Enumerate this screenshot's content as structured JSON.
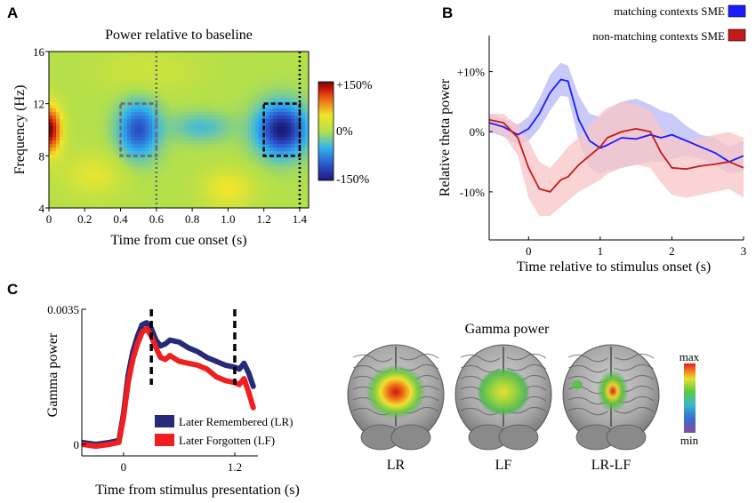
{
  "panel_letters": {
    "a": "A",
    "b": "B",
    "c": "C"
  },
  "colors": {
    "matching": "#1a1aff",
    "matching_band": "#b8b8f5",
    "nonmatching": "#c41a1a",
    "nonmatching_band": "#f8c6c6",
    "lr": "#262a78",
    "lf": "#f01e1e"
  },
  "chart_data": [
    {
      "panel": "A",
      "type": "heatmap",
      "title": "Power relative to baseline",
      "xlabel": "Time from cue onset (s)",
      "ylabel": "Frequency (Hz)",
      "xlim": [
        0,
        1.45
      ],
      "ylim": [
        4,
        16
      ],
      "xticks": [
        "0",
        "0.2",
        "0.4",
        "0.6",
        "0.8",
        "1.0",
        "1.2",
        "1.4"
      ],
      "xtick_values": [
        0,
        0.2,
        0.4,
        0.6,
        0.8,
        1.0,
        1.2,
        1.4
      ],
      "yticks": [
        "4",
        "8",
        "12",
        "16"
      ],
      "ytick_values": [
        4,
        8,
        12,
        16
      ],
      "colorbar": {
        "max_label": "+150%",
        "mid_label": "0%",
        "min_label": "-150%"
      },
      "blobs": [
        {
          "t": 0.0,
          "f": 10,
          "st": 0.05,
          "sf": 1.3,
          "v": 1.5
        },
        {
          "t": 0.5,
          "f": 10,
          "st": 0.08,
          "sf": 1.5,
          "v": -1.1
        },
        {
          "t": 1.3,
          "f": 10,
          "st": 0.1,
          "sf": 1.4,
          "v": -1.5
        },
        {
          "t": 0.85,
          "f": 10.2,
          "st": 0.12,
          "sf": 0.8,
          "v": -0.45
        },
        {
          "t": 0.25,
          "f": 6.5,
          "st": 0.12,
          "sf": 1.2,
          "v": 0.35
        },
        {
          "t": 1.0,
          "f": 5.5,
          "st": 0.1,
          "sf": 1.0,
          "v": 0.45
        },
        {
          "t": 0.55,
          "f": 14.5,
          "st": 0.2,
          "sf": 1.2,
          "v": 0.2
        }
      ],
      "time_markers": [
        {
          "t": 0.6,
          "style": "gray-dotted"
        },
        {
          "t": 1.4,
          "style": "black-dotted"
        }
      ],
      "boxes": [
        {
          "t0": 0.4,
          "t1": 0.6,
          "f0": 8,
          "f1": 12,
          "style": "gray-dashed"
        },
        {
          "t0": 1.2,
          "t1": 1.4,
          "f0": 8,
          "f1": 12,
          "style": "black-dashed"
        }
      ]
    },
    {
      "panel": "B",
      "type": "line",
      "xlabel": "Time relative to stimulus onset (s)",
      "ylabel": "Relative theta power",
      "xlim": [
        -0.55,
        3
      ],
      "ylim": [
        -18,
        16
      ],
      "xticks": [
        "0",
        "1",
        "2",
        "3"
      ],
      "xtick_values": [
        0,
        1,
        2,
        3
      ],
      "yticks": [
        "+10%",
        "0%",
        "-10%"
      ],
      "ytick_values": [
        10,
        0,
        -10
      ],
      "x": [
        -0.55,
        -0.35,
        -0.15,
        0,
        0.15,
        0.3,
        0.45,
        0.55,
        0.7,
        0.85,
        1.0,
        1.1,
        1.3,
        1.5,
        1.7,
        1.85,
        2.0,
        2.2,
        2.4,
        2.6,
        2.8,
        3.0
      ],
      "series": [
        {
          "name": "matching contexts SME",
          "values": [
            1.5,
            0.8,
            -0.5,
            0.5,
            3.0,
            6.5,
            8.7,
            8.4,
            2.0,
            -1.5,
            -2.7,
            -2.2,
            -1.0,
            -1.2,
            -0.5,
            -1.0,
            -0.5,
            -1.5,
            -2.5,
            -3.5,
            -5.0,
            -4.0
          ],
          "upper": [
            3.0,
            2.2,
            1.2,
            2.5,
            5.5,
            9.5,
            11.5,
            11.0,
            6.0,
            3.0,
            2.5,
            3.5,
            5.0,
            5.5,
            4.5,
            3.5,
            3.0,
            1.0,
            -0.5,
            -1.0,
            -2.5,
            -1.5
          ],
          "lower": [
            0.0,
            -0.8,
            -2.2,
            -1.5,
            0.5,
            3.5,
            6.0,
            5.8,
            -1.5,
            -6.0,
            -7.0,
            -6.5,
            -6.0,
            -5.5,
            -5.0,
            -5.0,
            -4.5,
            -4.0,
            -4.5,
            -5.5,
            -7.0,
            -6.5
          ]
        },
        {
          "name": "non-matching contexts SME",
          "values": [
            2.0,
            1.5,
            -1.0,
            -6.0,
            -9.5,
            -10.0,
            -8.0,
            -7.5,
            -5.5,
            -4.0,
            -2.5,
            -1.0,
            0.0,
            0.5,
            0.0,
            -3.5,
            -6.0,
            -6.2,
            -5.7,
            -5.4,
            -5.0,
            -6.0
          ],
          "upper": [
            3.0,
            3.0,
            1.0,
            -1.5,
            -5.0,
            -6.0,
            -4.0,
            -2.5,
            -1.0,
            1.0,
            3.0,
            4.0,
            5.0,
            4.5,
            3.5,
            0.5,
            -1.0,
            -1.5,
            -1.0,
            -0.5,
            0.0,
            -1.0
          ],
          "lower": [
            0.5,
            -0.5,
            -4.0,
            -11.0,
            -14.0,
            -14.0,
            -12.5,
            -11.5,
            -10.0,
            -9.0,
            -8.0,
            -7.0,
            -6.0,
            -5.5,
            -6.0,
            -8.5,
            -10.5,
            -11.0,
            -10.5,
            -10.0,
            -9.5,
            -11.0
          ]
        }
      ]
    },
    {
      "panel": "C",
      "type": "line",
      "xlabel": "Time from stimulus presentation (s)",
      "ylabel": "Gamma power",
      "xlim": [
        -0.45,
        1.45
      ],
      "ylim": [
        -0.0003,
        0.0035
      ],
      "xticks": [
        "0",
        "1.2"
      ],
      "xtick_values": [
        0,
        1.2
      ],
      "yticks": [
        "0.0035",
        "0"
      ],
      "ytick_values": [
        0.0035,
        0
      ],
      "markers": [
        0.3,
        1.2
      ],
      "x": [
        -0.45,
        -0.3,
        -0.15,
        -0.05,
        0.0,
        0.05,
        0.1,
        0.15,
        0.2,
        0.25,
        0.3,
        0.35,
        0.4,
        0.45,
        0.5,
        0.6,
        0.7,
        0.8,
        0.9,
        1.0,
        1.1,
        1.2,
        1.25,
        1.3,
        1.35,
        1.4
      ],
      "series": [
        {
          "name": "Later Remembered (LR)",
          "values": [
            5e-05,
            0.0,
            5e-05,
            0.0001,
            0.0008,
            0.0018,
            0.0024,
            0.0028,
            0.0031,
            0.00315,
            0.003,
            0.0027,
            0.00255,
            0.0026,
            0.0027,
            0.00265,
            0.0025,
            0.0024,
            0.00225,
            0.00215,
            0.00205,
            0.002,
            0.00195,
            0.0021,
            0.00185,
            0.0015
          ]
        },
        {
          "name": "Later Forgotten (LF)",
          "values": [
            0.0,
            -5e-05,
            0.0,
            5e-05,
            0.0007,
            0.0016,
            0.0022,
            0.0026,
            0.0029,
            0.003,
            0.0028,
            0.0025,
            0.00225,
            0.0022,
            0.0023,
            0.00215,
            0.0021,
            0.00205,
            0.00195,
            0.00175,
            0.00165,
            0.0016,
            0.00155,
            0.0017,
            0.00135,
            0.00095
          ]
        }
      ]
    },
    {
      "panel": "C-brains",
      "type": "heatmap",
      "title": "Gamma power",
      "colorbar": {
        "max_label": "max",
        "min_label": "min"
      },
      "maps": [
        {
          "label": "LR",
          "intensity": 1.0
        },
        {
          "label": "LF",
          "intensity": 0.7
        },
        {
          "label": "LR-LF",
          "intensity": 0.85
        }
      ]
    }
  ]
}
